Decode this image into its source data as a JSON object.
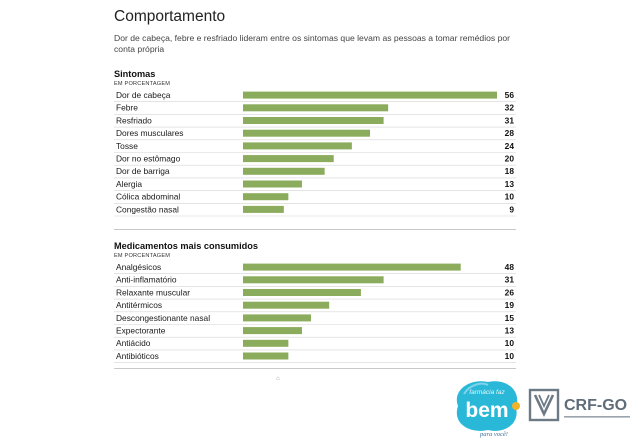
{
  "header": {
    "title": "Comportamento",
    "subtitle": "Dor de cabeça, febre e resfriado lideram entre os sintomas que levam as pessoas a tomar remédios por conta própria"
  },
  "colors": {
    "bar": "#8bac5c"
  },
  "chart_data": [
    {
      "type": "bar",
      "orientation": "horizontal",
      "title": "Sintomas",
      "unit": "EM PORCENTAGEM",
      "categories": [
        "Dor de cabeça",
        "Febre",
        "Resfriado",
        "Dores musculares",
        "Tosse",
        "Dor no estômago",
        "Dor de barriga",
        "Alergia",
        "Cólica abdominal",
        "Congestão nasal"
      ],
      "values": [
        56,
        32,
        31,
        28,
        24,
        20,
        18,
        13,
        10,
        9
      ],
      "xlim": [
        0,
        56
      ],
      "grid": false,
      "legend": "none"
    },
    {
      "type": "bar",
      "orientation": "horizontal",
      "title": "Medicamentos mais consumidos",
      "unit": "EM PORCENTAGEM",
      "categories": [
        "Analgésicos",
        "Anti-inflamatório",
        "Relaxante muscular",
        "Antitérmicos",
        "Descongestionante nasal",
        "Expectorante",
        "Antiácido",
        "Antibióticos"
      ],
      "values": [
        48,
        31,
        26,
        19,
        15,
        13,
        10,
        10
      ],
      "xlim": [
        0,
        56
      ],
      "grid": false,
      "legend": "none"
    }
  ]
}
